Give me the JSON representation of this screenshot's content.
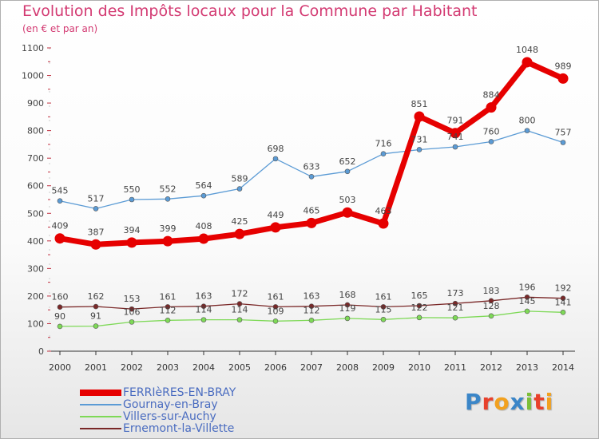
{
  "title": "Evolution des Impôts locaux pour la Commune par Habitant",
  "subtitle": "(en € et par an)",
  "logo": {
    "text": "Proxiti",
    "letters": [
      {
        "ch": "P",
        "color": "#3b86c8"
      },
      {
        "ch": "r",
        "color": "#e8412c"
      },
      {
        "ch": "o",
        "color": "#f2a11f"
      },
      {
        "ch": "x",
        "color": "#3b86c8"
      },
      {
        "ch": "i",
        "color": "#7cbf38"
      },
      {
        "ch": "t",
        "color": "#e8412c"
      },
      {
        "ch": "i",
        "color": "#f2a11f"
      }
    ]
  },
  "chart_data": {
    "type": "line",
    "title": "Evolution des Impôts locaux pour la Commune par Habitant",
    "subtitle": "(en € et par an)",
    "x": [
      "2000",
      "2001",
      "2002",
      "2003",
      "2004",
      "2005",
      "2006",
      "2007",
      "2008",
      "2009",
      "2010",
      "2011",
      "2012",
      "2013",
      "2014"
    ],
    "ylim": [
      0,
      1100
    ],
    "yticks": [
      0,
      100,
      200,
      300,
      400,
      500,
      600,
      700,
      800,
      900,
      1000,
      1100
    ],
    "grid": false,
    "legend_position": "bottom-left",
    "series": [
      {
        "name": "FERRIèRES-EN-BRAY",
        "color": "#e60000",
        "emphasis": "thick",
        "values": [
          409,
          387,
          394,
          399,
          408,
          425,
          449,
          465,
          503,
          463,
          851,
          791,
          884,
          1048,
          989
        ]
      },
      {
        "name": "Gournay-en-Bray",
        "color": "#5b9bd5",
        "emphasis": "thin",
        "values": [
          545,
          517,
          550,
          552,
          564,
          589,
          698,
          633,
          652,
          716,
          731,
          741,
          760,
          800,
          757
        ]
      },
      {
        "name": "Villers-sur-Auchy",
        "color": "#7ed957",
        "emphasis": "thin",
        "values": [
          90,
          91,
          106,
          112,
          114,
          114,
          109,
          112,
          119,
          115,
          122,
          121,
          128,
          145,
          141
        ]
      },
      {
        "name": "Ernemont-la-Villette",
        "color": "#7a2828",
        "emphasis": "thin",
        "values": [
          160,
          162,
          153,
          161,
          163,
          172,
          161,
          163,
          168,
          161,
          165,
          173,
          183,
          196,
          192
        ]
      }
    ]
  }
}
